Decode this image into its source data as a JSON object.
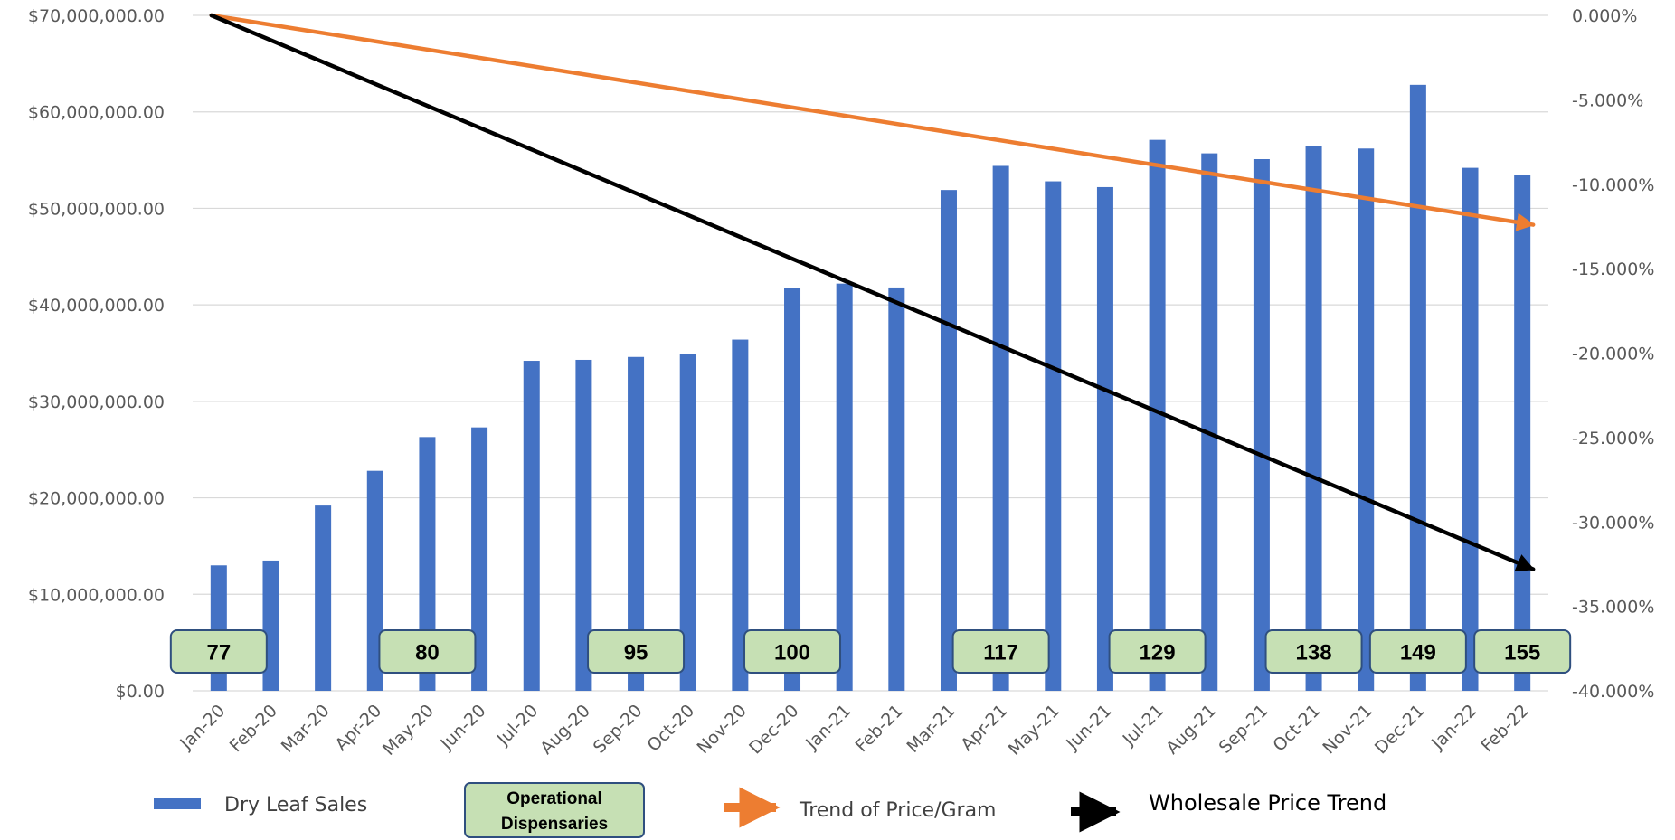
{
  "chart_data": {
    "type": "bar",
    "categories": [
      "Jan-20",
      "Feb-20",
      "Mar-20",
      "Apr-20",
      "May-20",
      "Jun-20",
      "Jul-20",
      "Aug-20",
      "Sep-20",
      "Oct-20",
      "Nov-20",
      "Dec-20",
      "Jan-21",
      "Feb-21",
      "Mar-21",
      "Apr-21",
      "May-21",
      "Jun-21",
      "Jul-21",
      "Aug-21",
      "Sep-21",
      "Oct-21",
      "Nov-21",
      "Dec-21",
      "Jan-22",
      "Feb-22"
    ],
    "series": [
      {
        "name": "Dry Leaf Sales",
        "color": "#4472C4",
        "values": [
          13000000,
          13500000,
          19200000,
          22800000,
          26300000,
          27300000,
          34200000,
          34300000,
          34600000,
          34900000,
          36400000,
          41700000,
          42200000,
          41800000,
          51900000,
          54400000,
          52800000,
          52200000,
          57100000,
          55700000,
          55100000,
          56500000,
          56200000,
          62800000,
          54200000,
          53500000
        ]
      }
    ],
    "left_axis": {
      "ylim": [
        0,
        70000000
      ],
      "ticks": [
        "$0.00",
        "$10,000,000.00",
        "$20,000,000.00",
        "$30,000,000.00",
        "$40,000,000.00",
        "$50,000,000.00",
        "$60,000,000.00",
        "$70,000,000.00"
      ]
    },
    "right_axis": {
      "ylim": [
        -40,
        0
      ],
      "ticks": [
        "-40.000%",
        "-35.000%",
        "-30.000%",
        "-25.000%",
        "-20.000%",
        "-15.000%",
        "-10.000%",
        "-5.000%",
        "0.000%"
      ]
    },
    "trend_lines": [
      {
        "name": "Trend of Price/Gram",
        "color": "#ED7D31",
        "from": {
          "category": "Jan-20",
          "pct": 0
        },
        "to": {
          "category": "Feb-22",
          "pct": -12.4
        }
      },
      {
        "name": "Wholesale Price Trend",
        "color": "#000000",
        "from": {
          "category": "Jan-20",
          "pct": 0
        },
        "to": {
          "category": "Feb-22",
          "pct": -32.8
        }
      }
    ],
    "dispensary_counts": [
      {
        "category": "Jan-20",
        "value": "77"
      },
      {
        "category": "May-20",
        "value": "80"
      },
      {
        "category": "Sep-20",
        "value": "95"
      },
      {
        "category": "Dec-20",
        "value": "100"
      },
      {
        "category": "Apr-21",
        "value": "117"
      },
      {
        "category": "Jul-21",
        "value": "129"
      },
      {
        "category": "Oct-21",
        "value": "138"
      },
      {
        "category": "Dec-21",
        "value": "149"
      },
      {
        "category": "Feb-22",
        "value": "155"
      }
    ],
    "legend": {
      "sales": "Dry Leaf Sales",
      "dispensaries_line1": "Operational",
      "dispensaries_line2": "Dispensaries",
      "price_gram": "Trend of Price/Gram",
      "wholesale": "Wholesale Price Trend"
    },
    "grid": true,
    "colors": {
      "bar": "#4472C4",
      "label_fill": "#C6E0B4",
      "label_border": "#2F4F7F",
      "gridline": "#D9D9D9"
    }
  }
}
